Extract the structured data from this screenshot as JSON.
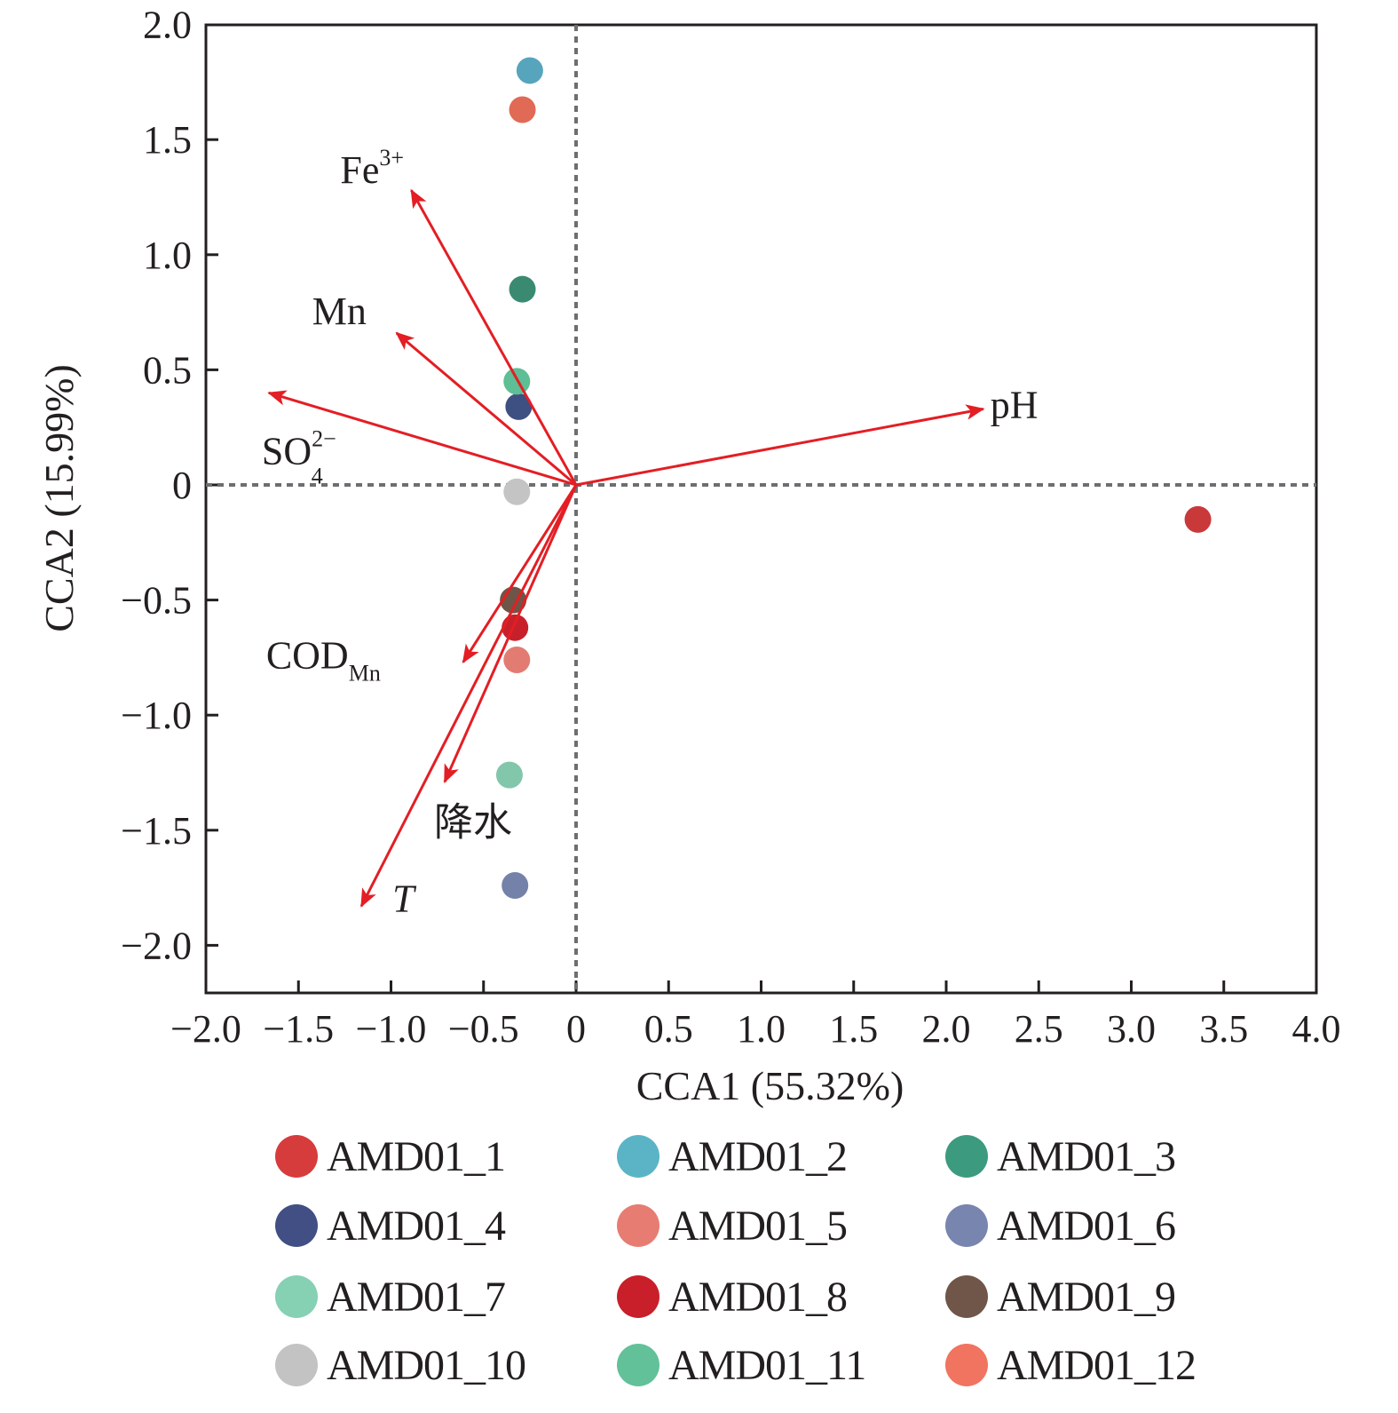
{
  "chart_data": {
    "type": "scatter",
    "subtype": "CCA biplot",
    "title": "",
    "xlabel": "CCA1 (55.32%)",
    "ylabel": "CCA2 (15.99%)",
    "xlim": [
      -2.0,
      4.0
    ],
    "ylim": [
      -2.2,
      2.0
    ],
    "x_ticks": [
      -2.0,
      -1.5,
      -1.0,
      -0.5,
      0,
      0.5,
      1.0,
      1.5,
      2.0,
      2.5,
      3.0,
      3.5,
      4.0
    ],
    "x_tick_labels": [
      "−2.0",
      "−1.5",
      "−1.0",
      "−0.5",
      "0",
      "0.5",
      "1.0",
      "1.5",
      "2.0",
      "2.5",
      "3.0",
      "3.5",
      "4.0"
    ],
    "y_ticks": [
      2.0,
      1.5,
      1.0,
      0.5,
      0,
      -0.5,
      -1.0,
      -1.5,
      -2.0
    ],
    "y_tick_labels": [
      "2.0",
      "1.5",
      "1.0",
      "0.5",
      "0",
      "−0.5",
      "−1.0",
      "−1.5",
      "−2.0"
    ],
    "grid": false,
    "reference_lines": {
      "x0": true,
      "y0": true,
      "style": "dotted",
      "color": "#6d6e71"
    },
    "arrow_color": "#e31e24",
    "points": [
      {
        "name": "AMD01_1",
        "x": 3.36,
        "y": -0.15,
        "color": "#c9393a"
      },
      {
        "name": "AMD01_2",
        "x": -0.25,
        "y": 1.8,
        "color": "#56a5bd"
      },
      {
        "name": "AMD01_3",
        "x": -0.29,
        "y": 0.85,
        "color": "#3a8a72"
      },
      {
        "name": "AMD01_4",
        "x": -0.31,
        "y": 0.34,
        "color": "#3e4f82"
      },
      {
        "name": "AMD01_5",
        "x": -0.32,
        "y": -0.76,
        "color": "#e27c72"
      },
      {
        "name": "AMD01_6",
        "x": -0.33,
        "y": -1.74,
        "color": "#7482aa"
      },
      {
        "name": "AMD01_7",
        "x": -0.36,
        "y": -1.26,
        "color": "#82c6ab"
      },
      {
        "name": "AMD01_8",
        "x": -0.33,
        "y": -0.62,
        "color": "#c8202b"
      },
      {
        "name": "AMD01_9",
        "x": -0.34,
        "y": -0.5,
        "color": "#6e5547"
      },
      {
        "name": "AMD01_10",
        "x": -0.32,
        "y": -0.03,
        "color": "#c4c4c4"
      },
      {
        "name": "AMD01_11",
        "x": -0.32,
        "y": 0.45,
        "color": "#5ebe95"
      },
      {
        "name": "AMD01_12",
        "x": -0.29,
        "y": 1.63,
        "color": "#e06a55"
      }
    ],
    "vectors": [
      {
        "name": "Fe3+",
        "label": "Fe",
        "sup": "3+",
        "sub": "",
        "x": -0.89,
        "y": 1.28
      },
      {
        "name": "Mn",
        "label": "Mn",
        "sup": "",
        "sub": "",
        "x": -0.97,
        "y": 0.66
      },
      {
        "name": "SO4 2-",
        "label": "SO",
        "sup": "2−",
        "sub": "4",
        "x": -1.66,
        "y": 0.4
      },
      {
        "name": "pH",
        "label": "pH",
        "sup": "",
        "sub": "",
        "x": 2.2,
        "y": 0.33
      },
      {
        "name": "COD_Mn",
        "label": "COD",
        "sup": "",
        "sub": "Mn",
        "x": -0.61,
        "y": -0.77
      },
      {
        "name": "降水",
        "label": "降水",
        "sup": "",
        "sub": "",
        "x": -0.71,
        "y": -1.29
      },
      {
        "name": "T",
        "label": "T",
        "sup": "",
        "sub": "",
        "x": -1.16,
        "y": -1.83,
        "italic": true
      }
    ],
    "legend": {
      "placement": "bottom",
      "columns": 3,
      "entries": [
        {
          "label": "AMD01_1",
          "color": "#d63c3c"
        },
        {
          "label": "AMD01_2",
          "color": "#5ab4c6"
        },
        {
          "label": "AMD01_3",
          "color": "#3c9a7f"
        },
        {
          "label": "AMD01_4",
          "color": "#414f84"
        },
        {
          "label": "AMD01_5",
          "color": "#e77c73"
        },
        {
          "label": "AMD01_6",
          "color": "#7885ae"
        },
        {
          "label": "AMD01_7",
          "color": "#86d0b3"
        },
        {
          "label": "AMD01_8",
          "color": "#c81f2b"
        },
        {
          "label": "AMD01_9",
          "color": "#705648"
        },
        {
          "label": "AMD01_10",
          "color": "#c3c3c3"
        },
        {
          "label": "AMD01_11",
          "color": "#62c199"
        },
        {
          "label": "AMD01_12",
          "color": "#f07460"
        }
      ]
    }
  }
}
